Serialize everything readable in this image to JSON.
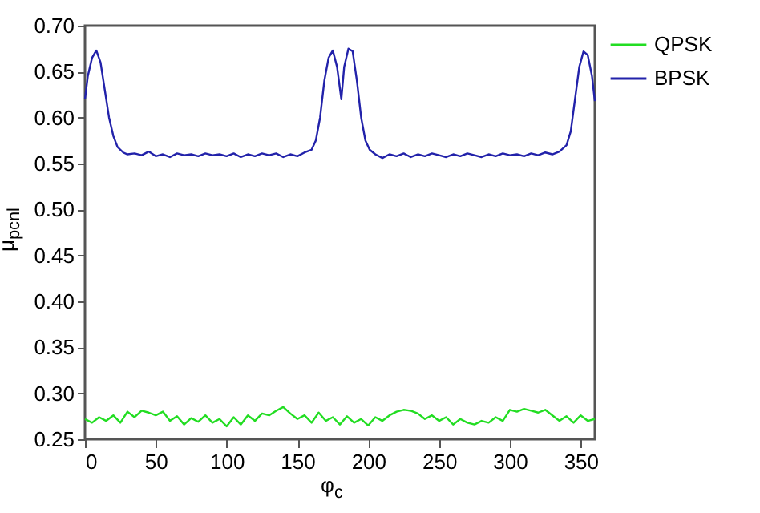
{
  "chart_data": {
    "type": "line",
    "xlabel": "φ$_{c}$",
    "ylabel": "μ$_{pcnl}$",
    "xlim": [
      0,
      360
    ],
    "xticks": [
      0,
      50,
      100,
      150,
      200,
      250,
      300,
      350
    ],
    "ylim": [
      0.25,
      0.7
    ],
    "yticks": [
      0.25,
      {
        "value": 0.3,
        "label": "0.30"
      },
      0.35,
      {
        "value": 0.4,
        "label": "0.40"
      },
      0.45,
      {
        "value": 0.5,
        "label": "0.50"
      },
      0.55,
      {
        "value": 0.6,
        "label": "0.60"
      },
      0.65,
      {
        "value": 0.7,
        "label": "0.70"
      }
    ],
    "grid": false,
    "legend": "top right",
    "line_style": "solid",
    "marker": "none",
    "series": [
      {
        "name": "QPSK",
        "color": "#22dd22",
        "x": [
          0,
          5,
          10,
          15,
          20,
          25,
          30,
          35,
          40,
          45,
          50,
          55,
          60,
          65,
          70,
          75,
          80,
          85,
          90,
          95,
          100,
          105,
          110,
          115,
          120,
          125,
          130,
          135,
          140,
          145,
          150,
          155,
          160,
          165,
          170,
          175,
          180,
          185,
          190,
          195,
          200,
          205,
          210,
          215,
          220,
          225,
          230,
          235,
          240,
          245,
          250,
          255,
          260,
          265,
          270,
          275,
          280,
          285,
          290,
          295,
          300,
          305,
          310,
          315,
          320,
          325,
          330,
          335,
          340,
          345,
          350,
          355,
          360
        ],
        "values": [
          0.272,
          0.268,
          0.274,
          0.27,
          0.276,
          0.268,
          0.28,
          0.274,
          0.281,
          0.279,
          0.276,
          0.28,
          0.27,
          0.275,
          0.266,
          0.273,
          0.269,
          0.276,
          0.268,
          0.272,
          0.264,
          0.274,
          0.266,
          0.276,
          0.27,
          0.278,
          0.276,
          0.281,
          0.285,
          0.278,
          0.272,
          0.276,
          0.268,
          0.279,
          0.27,
          0.274,
          0.266,
          0.275,
          0.268,
          0.272,
          0.265,
          0.274,
          0.27,
          0.276,
          0.28,
          0.282,
          0.281,
          0.278,
          0.272,
          0.276,
          0.27,
          0.274,
          0.266,
          0.272,
          0.268,
          0.266,
          0.27,
          0.268,
          0.274,
          0.27,
          0.282,
          0.28,
          0.283,
          0.281,
          0.279,
          0.282,
          0.276,
          0.27,
          0.275,
          0.268,
          0.276,
          0.27,
          0.272
        ]
      },
      {
        "name": "BPSK",
        "color": "#2222aa",
        "x": [
          0,
          2,
          5,
          8,
          11,
          14,
          17,
          20,
          23,
          27,
          30,
          35,
          40,
          45,
          50,
          55,
          60,
          65,
          70,
          75,
          80,
          85,
          90,
          95,
          100,
          105,
          110,
          115,
          120,
          125,
          130,
          135,
          140,
          145,
          150,
          155,
          160,
          163,
          166,
          169,
          172,
          175,
          178,
          181,
          183,
          186,
          189,
          192,
          195,
          198,
          201,
          205,
          210,
          215,
          220,
          225,
          230,
          235,
          240,
          245,
          250,
          255,
          260,
          265,
          270,
          275,
          280,
          285,
          290,
          295,
          300,
          305,
          310,
          315,
          320,
          325,
          330,
          335,
          340,
          343,
          346,
          349,
          352,
          355,
          358,
          360
        ],
        "values": [
          0.62,
          0.645,
          0.665,
          0.673,
          0.66,
          0.63,
          0.6,
          0.58,
          0.568,
          0.562,
          0.56,
          0.561,
          0.559,
          0.563,
          0.558,
          0.56,
          0.557,
          0.561,
          0.559,
          0.56,
          0.558,
          0.561,
          0.559,
          0.56,
          0.558,
          0.561,
          0.557,
          0.56,
          0.558,
          0.561,
          0.559,
          0.561,
          0.557,
          0.56,
          0.558,
          0.562,
          0.565,
          0.575,
          0.6,
          0.64,
          0.665,
          0.673,
          0.655,
          0.62,
          0.655,
          0.675,
          0.672,
          0.64,
          0.6,
          0.575,
          0.565,
          0.56,
          0.556,
          0.56,
          0.558,
          0.561,
          0.557,
          0.56,
          0.558,
          0.561,
          0.559,
          0.557,
          0.56,
          0.558,
          0.561,
          0.559,
          0.557,
          0.56,
          0.558,
          0.561,
          0.559,
          0.56,
          0.558,
          0.561,
          0.559,
          0.562,
          0.56,
          0.563,
          0.57,
          0.585,
          0.62,
          0.655,
          0.672,
          0.668,
          0.645,
          0.618
        ]
      }
    ]
  }
}
